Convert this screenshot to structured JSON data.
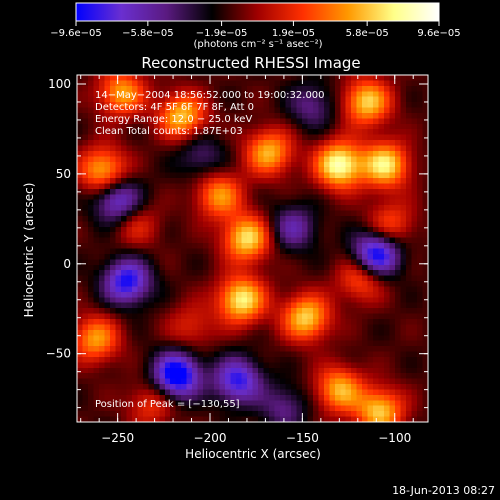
{
  "chart_data": {
    "type": "heatmap",
    "title": "Reconstructed RHESSI Image",
    "xlabel": "Heliocentric X (arcsec)",
    "ylabel": "Heliocentric Y (arcsec)",
    "xlim": [
      -272,
      -82
    ],
    "ylim": [
      -88,
      105
    ],
    "x_ticks": [
      -250,
      -200,
      -150,
      -100
    ],
    "x_tick_labels": [
      "−250",
      "−200",
      "−150",
      "−100"
    ],
    "y_ticks": [
      -50,
      0,
      50,
      100
    ],
    "y_tick_labels": [
      "−50",
      "0",
      "50",
      "100"
    ],
    "colorbar": {
      "min": -9.6e-05,
      "max": 9.6e-05,
      "ticks": [
        -9.6e-05,
        -5.8e-05,
        -1.9e-05,
        1.9e-05,
        5.8e-05,
        9.6e-05
      ],
      "tick_labels": [
        "−9.6e−05",
        "−5.8e−05",
        "−1.9e−05",
        "1.9e−05",
        "5.8e−05",
        "9.6e−05"
      ],
      "unit_label": "(photons cm⁻² s⁻¹ asec⁻²)",
      "colormap": [
        "#0000ff",
        "#6a2fd0",
        "#5a1a80",
        "#000000",
        "#a00000",
        "#ff3000",
        "#ff9900",
        "#ffff88",
        "#ffffff"
      ]
    },
    "annotations": [
      "14−May−2004 18:56:52.000 to 19:00:32.000",
      "Detectors: 4F 5F 6F 7F 8F, Att 0",
      "Energy Range: 12.0 − 25.0 keV",
      "Clean    Total counts: 1.87E+03"
    ],
    "peak_label": "Position of Peak = [−130,55]",
    "peak_position": [
      -130,
      55
    ],
    "sources": [
      {
        "x": -130,
        "y": 55,
        "value": 9.6e-05
      },
      {
        "x": -105,
        "y": 55,
        "value": 8.2e-05
      },
      {
        "x": -115,
        "y": 90,
        "value": 7.6e-05
      },
      {
        "x": -168,
        "y": 62,
        "value": 6.8e-05
      },
      {
        "x": -215,
        "y": 82,
        "value": 7.2e-05
      },
      {
        "x": -248,
        "y": 95,
        "value": 6.4e-05
      },
      {
        "x": -258,
        "y": 52,
        "value": 7e-05
      },
      {
        "x": -195,
        "y": 38,
        "value": 6e-05
      },
      {
        "x": -180,
        "y": 14,
        "value": 8e-05
      },
      {
        "x": -183,
        "y": -20,
        "value": 8.6e-05
      },
      {
        "x": -240,
        "y": 22,
        "value": 3.2e-05
      },
      {
        "x": -148,
        "y": -30,
        "value": 7.6e-05
      },
      {
        "x": -118,
        "y": -8,
        "value": 5e-05
      },
      {
        "x": -102,
        "y": 22,
        "value": 4.2e-05
      },
      {
        "x": -262,
        "y": -42,
        "value": 6.2e-05
      },
      {
        "x": -210,
        "y": -35,
        "value": 3e-05
      },
      {
        "x": -130,
        "y": -70,
        "value": 6.8e-05
      },
      {
        "x": -108,
        "y": -82,
        "value": 7.4e-05
      },
      {
        "x": -232,
        "y": -78,
        "value": 3.6e-05
      },
      {
        "x": -250,
        "y": 35,
        "value": -6.5e-05
      },
      {
        "x": -245,
        "y": -10,
        "value": -7.8e-05
      },
      {
        "x": -218,
        "y": -62,
        "value": -9.6e-05
      },
      {
        "x": -185,
        "y": -65,
        "value": -7.2e-05
      },
      {
        "x": -110,
        "y": 5,
        "value": -9e-05
      },
      {
        "x": -155,
        "y": 20,
        "value": -4.5e-05
      },
      {
        "x": -145,
        "y": 88,
        "value": -3.6e-05
      },
      {
        "x": -205,
        "y": 60,
        "value": -3.2e-05
      },
      {
        "x": -160,
        "y": -80,
        "value": -3.6e-05
      }
    ]
  },
  "footer": {
    "timestamp": "18-Jun-2013 08:27"
  }
}
